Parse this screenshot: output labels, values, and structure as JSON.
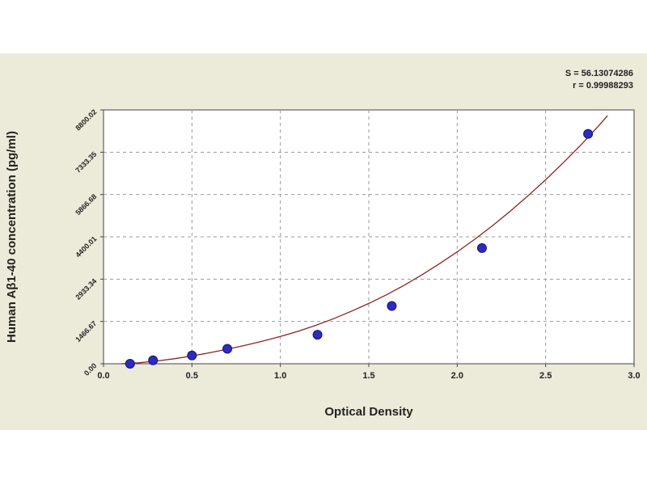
{
  "chart_data": {
    "type": "scatter",
    "title": "",
    "xlabel": "Optical Density",
    "ylabel": "Human Aβ1-40 concentration (pg/ml)",
    "xlim": [
      0,
      3.0
    ],
    "ylim": [
      0,
      8800.02
    ],
    "x_ticks": [
      "0.0",
      "0.5",
      "1.0",
      "1.5",
      "2.0",
      "2.5",
      "3.0"
    ],
    "y_ticks": [
      "0.00",
      "1466.67",
      "2933.34",
      "4400.01",
      "5866.68",
      "7333.35",
      "8800.02"
    ],
    "grid": true,
    "stats": [
      "S = 56.13074286",
      "r = 0.99988293"
    ],
    "series": [
      {
        "values_x": [
          0.15,
          0.28,
          0.5,
          0.7,
          1.21,
          1.63,
          2.14,
          2.74
        ],
        "values_y": [
          0,
          119,
          287,
          520,
          1006,
          2005,
          4010,
          7970
        ]
      }
    ],
    "fit_curve": {
      "x": [
        0.1,
        0.2,
        0.3,
        0.4,
        0.5,
        0.6,
        0.7,
        0.8,
        0.9,
        1.0,
        1.1,
        1.2,
        1.3,
        1.4,
        1.5,
        1.6,
        1.7,
        1.8,
        1.9,
        2.0,
        2.1,
        2.2,
        2.3,
        2.4,
        2.5,
        2.6,
        2.7,
        2.8,
        2.85
      ],
      "y": [
        0,
        35,
        95,
        175,
        270,
        380,
        505,
        640,
        785,
        945,
        1125,
        1330,
        1560,
        1815,
        2090,
        2390,
        2720,
        3080,
        3470,
        3880,
        4320,
        4790,
        5290,
        5820,
        6380,
        6970,
        7590,
        8250,
        8600
      ]
    },
    "colors": {
      "marker": "#2b2bc4",
      "curve": "#8b2323",
      "grid": "#9a9a9a",
      "plot_bg": "#ffffff",
      "panel_bg": "#ecebd9"
    }
  }
}
